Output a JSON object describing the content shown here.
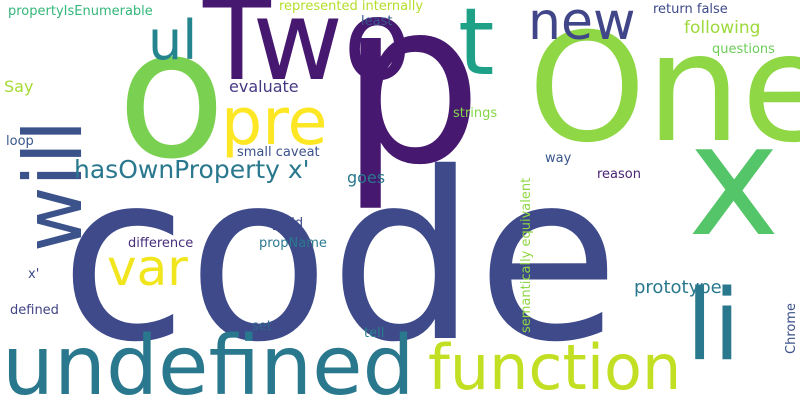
{
  "words": [
    {
      "text": "code",
      "color": "#3e4a89",
      "vertical": false
    },
    {
      "text": "p",
      "color": "#46186f",
      "vertical": false
    },
    {
      "text": "Two",
      "color": "#46186f",
      "vertical": false
    },
    {
      "text": "One",
      "color": "#8fd744",
      "vertical": false
    },
    {
      "text": "o",
      "color": "#7ad151",
      "vertical": false
    },
    {
      "text": "undefined",
      "color": "#2a788e",
      "vertical": false
    },
    {
      "text": "x",
      "color": "#54c568",
      "vertical": false
    },
    {
      "text": "t",
      "color": "#1fa187",
      "vertical": false
    },
    {
      "text": "function",
      "color": "#c2df23",
      "vertical": false
    },
    {
      "text": "will",
      "color": "#3b528b",
      "vertical": true
    },
    {
      "text": "li",
      "color": "#2a788e",
      "vertical": false
    },
    {
      "text": "pre",
      "color": "#fde725",
      "vertical": false
    },
    {
      "text": "new",
      "color": "#404688",
      "vertical": false
    },
    {
      "text": "var",
      "color": "#f1e51d",
      "vertical": false
    },
    {
      "text": "ul",
      "color": "#25858e",
      "vertical": false
    },
    {
      "text": "hasOwnProperty x'",
      "color": "#2a788e",
      "vertical": false
    },
    {
      "text": "prototype",
      "color": "#2a788e",
      "vertical": false
    },
    {
      "text": "following",
      "color": "#9dd93b",
      "vertical": false
    },
    {
      "text": "evaluate",
      "color": "#443a83",
      "vertical": false
    },
    {
      "text": "goes",
      "color": "#2a788e",
      "vertical": false
    },
    {
      "text": "Say",
      "color": "#a5db36",
      "vertical": false
    },
    {
      "text": "semantically equivalent",
      "color": "#8fd744",
      "vertical": true
    },
    {
      "text": "return false",
      "color": "#3e4a89",
      "vertical": false
    },
    {
      "text": "represented internally",
      "color": "#b5de2b",
      "vertical": false
    },
    {
      "text": "propertyIsEnumerable",
      "color": "#35b779",
      "vertical": false
    },
    {
      "text": "least",
      "color": "#39568c",
      "vertical": false
    },
    {
      "text": "questions",
      "color": "#6ccd5a",
      "vertical": false
    },
    {
      "text": "small caveat",
      "color": "#3b528b",
      "vertical": false
    },
    {
      "text": "strings",
      "color": "#86d549",
      "vertical": false
    },
    {
      "text": "loop",
      "color": "#39568c",
      "vertical": false
    },
    {
      "text": "way",
      "color": "#39568c",
      "vertical": false
    },
    {
      "text": "reason",
      "color": "#482475",
      "vertical": false
    },
    {
      "text": "x'",
      "color": "#3e4a89",
      "vertical": false
    },
    {
      "text": "yield",
      "color": "#3e4a89",
      "vertical": false
    },
    {
      "text": "difference",
      "color": "#472d7b",
      "vertical": false
    },
    {
      "text": "propName",
      "color": "#2a788e",
      "vertical": false
    },
    {
      "text": "defined",
      "color": "#414487",
      "vertical": false
    },
    {
      "text": "set",
      "color": "#31688e",
      "vertical": false
    },
    {
      "text": "tell",
      "color": "#26828e",
      "vertical": false
    },
    {
      "text": "Chrome",
      "color": "#3b528b",
      "vertical": true
    }
  ]
}
